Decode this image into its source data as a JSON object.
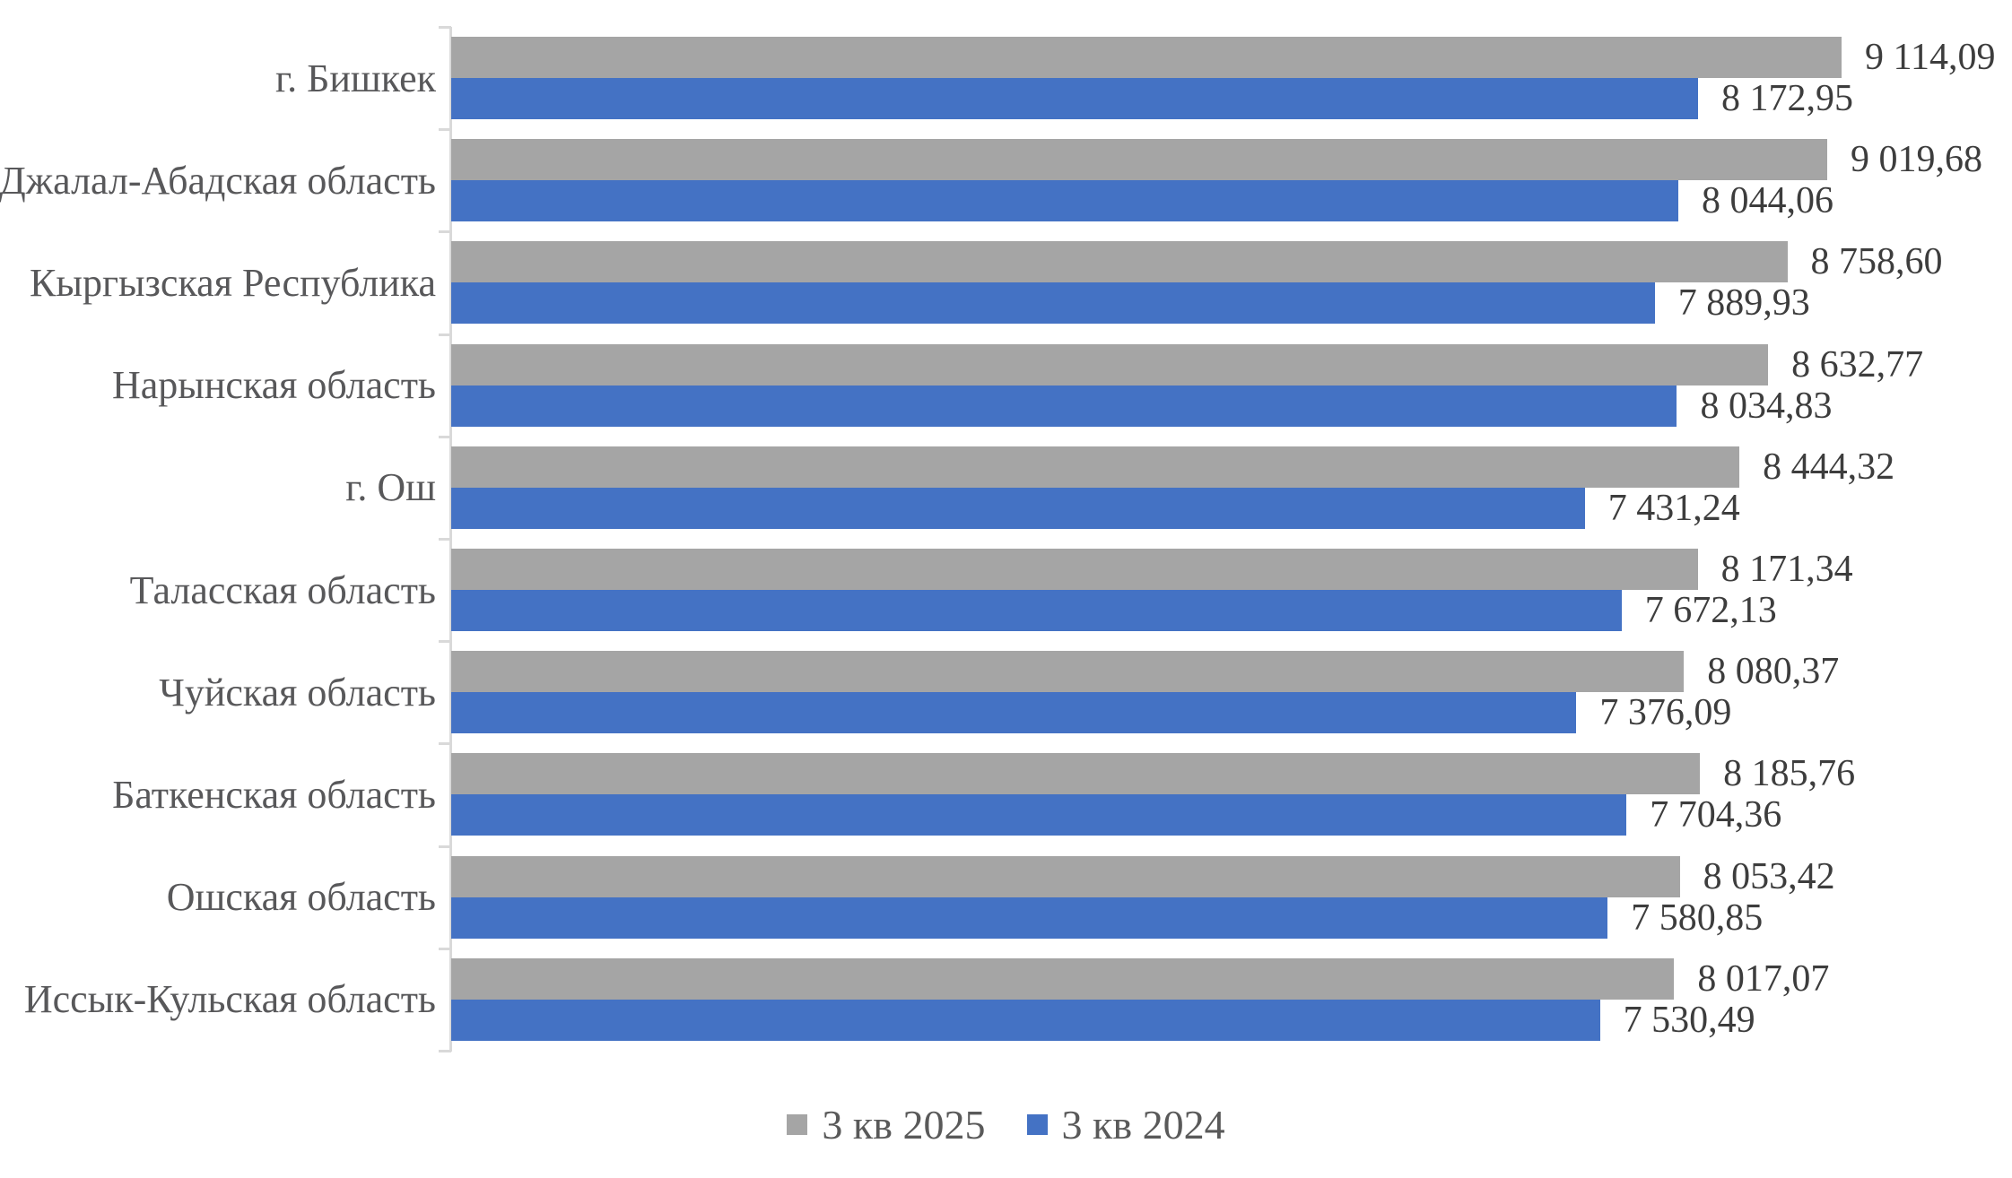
{
  "chart_data": {
    "type": "bar",
    "orientation": "horizontal",
    "title": "",
    "xlabel": "",
    "ylabel": "",
    "xlim": [
      0,
      9500
    ],
    "grid": false,
    "legend_position": "bottom-center",
    "value_labels_position": "outside-end",
    "number_format": "space thousands, comma decimals",
    "categories": [
      "г. Бишкек",
      "Джалал-Абадская область",
      "Кыргызская Республика",
      "Нарынская область",
      "г. Ош",
      "Таласская область",
      "Чуйская область",
      "Баткенская область",
      "Ошская область",
      "Иссык-Кульская область"
    ],
    "series": [
      {
        "name": "3 кв 2025",
        "color": "#A5A5A5",
        "values": [
          9114.09,
          9019.68,
          8758.6,
          8632.77,
          8444.32,
          8171.34,
          8080.37,
          8185.76,
          8053.42,
          8017.07
        ],
        "labels": [
          "9 114,09",
          "9 019,68",
          "8 758,60",
          "8 632,77",
          "8 444,32",
          "8 171,34",
          "8 080,37",
          "8 185,76",
          "8 053,42",
          "8 017,07"
        ]
      },
      {
        "name": "3 кв 2024",
        "color": "#4472C4",
        "values": [
          8172.95,
          8044.06,
          7889.93,
          8034.83,
          7431.24,
          7672.13,
          7376.09,
          7704.36,
          7580.85,
          7530.49
        ],
        "labels": [
          "8 172,95",
          "8 044,06",
          "7 889,93",
          "8 034,83",
          "7 431,24",
          "7 672,13",
          "7 376,09",
          "7 704,36",
          "7 580,85",
          "7 530,49"
        ]
      }
    ]
  },
  "legend": {
    "items": [
      {
        "label": "3 кв 2025",
        "color": "#A5A5A5"
      },
      {
        "label": "3 кв 2024",
        "color": "#4472C4"
      }
    ]
  },
  "colors": {
    "axis": "#D9D9D9",
    "category_label": "#58585a",
    "value_label": "#3d3d3d",
    "legend_label": "#595959",
    "background": "#FFFFFF"
  }
}
